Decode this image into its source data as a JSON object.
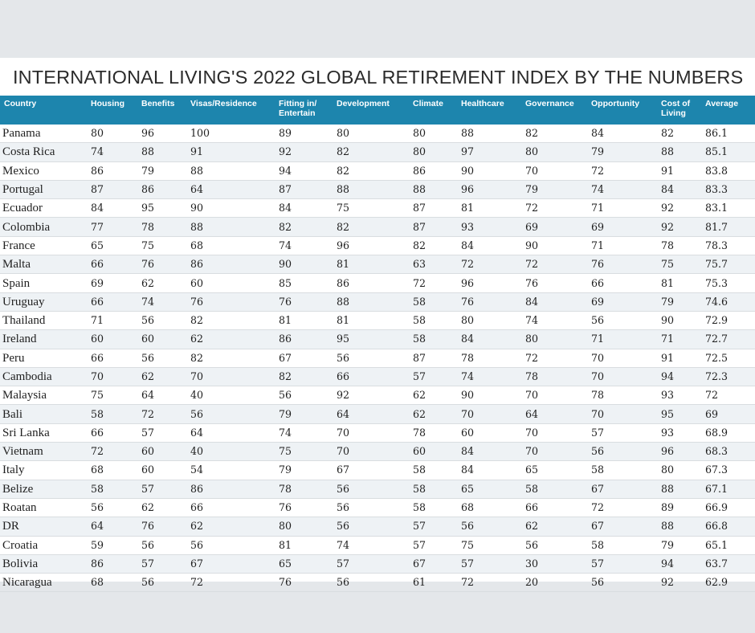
{
  "title": "INTERNATIONAL LIVING'S 2022 GLOBAL RETIREMENT INDEX BY THE NUMBERS",
  "columns": [
    "Country",
    "Housing",
    "Benefits",
    "Visas/Residence",
    "Fitting in/ Entertain",
    "Development",
    "Climate",
    "Healthcare",
    "Governance",
    "Opportunity",
    "Cost of Living",
    "Average"
  ],
  "rows": [
    [
      "Panama",
      "80",
      "96",
      "100",
      "89",
      "80",
      "80",
      "88",
      "82",
      "84",
      "82",
      "86.1"
    ],
    [
      "Costa Rica",
      "74",
      "88",
      "91",
      "92",
      "82",
      "80",
      "97",
      "80",
      "79",
      "88",
      "85.1"
    ],
    [
      "Mexico",
      "86",
      "79",
      "88",
      "94",
      "82",
      "86",
      "90",
      "70",
      "72",
      "91",
      "83.8"
    ],
    [
      "Portugal",
      "87",
      "86",
      "64",
      "87",
      "88",
      "88",
      "96",
      "79",
      "74",
      "84",
      "83.3"
    ],
    [
      "Ecuador",
      "84",
      "95",
      "90",
      "84",
      "75",
      "87",
      "81",
      "72",
      "71",
      "92",
      "83.1"
    ],
    [
      "Colombia",
      "77",
      "78",
      "88",
      "82",
      "82",
      "87",
      "93",
      "69",
      "69",
      "92",
      "81.7"
    ],
    [
      "France",
      "65",
      "75",
      "68",
      "74",
      "96",
      "82",
      "84",
      "90",
      "71",
      "78",
      "78.3"
    ],
    [
      "Malta",
      "66",
      "76",
      "86",
      "90",
      "81",
      "63",
      "72",
      "72",
      "76",
      "75",
      "75.7"
    ],
    [
      "Spain",
      "69",
      "62",
      "60",
      "85",
      "86",
      "72",
      "96",
      "76",
      "66",
      "81",
      "75.3"
    ],
    [
      "Uruguay",
      "66",
      "74",
      "76",
      "76",
      "88",
      "58",
      "76",
      "84",
      "69",
      "79",
      "74.6"
    ],
    [
      "Thailand",
      "71",
      "56",
      "82",
      "81",
      "81",
      "58",
      "80",
      "74",
      "56",
      "90",
      "72.9"
    ],
    [
      "Ireland",
      "60",
      "60",
      "62",
      "86",
      "95",
      "58",
      "84",
      "80",
      "71",
      "71",
      "72.7"
    ],
    [
      "Peru",
      "66",
      "56",
      "82",
      "67",
      "56",
      "87",
      "78",
      "72",
      "70",
      "91",
      "72.5"
    ],
    [
      "Cambodia",
      "70",
      "62",
      "70",
      "82",
      "66",
      "57",
      "74",
      "78",
      "70",
      "94",
      "72.3"
    ],
    [
      "Malaysia",
      "75",
      "64",
      "40",
      "56",
      "92",
      "62",
      "90",
      "70",
      "78",
      "93",
      "72"
    ],
    [
      "Bali",
      "58",
      "72",
      "56",
      "79",
      "64",
      "62",
      "70",
      "64",
      "70",
      "95",
      "69"
    ],
    [
      "Sri Lanka",
      "66",
      "57",
      "64",
      "74",
      "70",
      "78",
      "60",
      "70",
      "57",
      "93",
      "68.9"
    ],
    [
      "Vietnam",
      "72",
      "60",
      "40",
      "75",
      "70",
      "60",
      "84",
      "70",
      "56",
      "96",
      "68.3"
    ],
    [
      "Italy",
      "68",
      "60",
      "54",
      "79",
      "67",
      "58",
      "84",
      "65",
      "58",
      "80",
      "67.3"
    ],
    [
      "Belize",
      "58",
      "57",
      "86",
      "78",
      "56",
      "58",
      "65",
      "58",
      "67",
      "88",
      "67.1"
    ],
    [
      "Roatan",
      "56",
      "62",
      "66",
      "76",
      "56",
      "58",
      "68",
      "66",
      "72",
      "89",
      "66.9"
    ],
    [
      "DR",
      "64",
      "76",
      "62",
      "80",
      "56",
      "57",
      "56",
      "62",
      "67",
      "88",
      "66.8"
    ],
    [
      "Croatia",
      "59",
      "56",
      "56",
      "81",
      "74",
      "57",
      "75",
      "56",
      "58",
      "79",
      "65.1"
    ],
    [
      "Bolivia",
      "86",
      "57",
      "67",
      "65",
      "57",
      "67",
      "57",
      "30",
      "57",
      "94",
      "63.7"
    ],
    [
      "Nicaragua",
      "68",
      "56",
      "72",
      "76",
      "56",
      "61",
      "72",
      "20",
      "56",
      "92",
      "62.9"
    ]
  ],
  "colors": {
    "header": "#1d85ad",
    "row_shade": "#eef2f5",
    "background": "#e4e7ea"
  }
}
